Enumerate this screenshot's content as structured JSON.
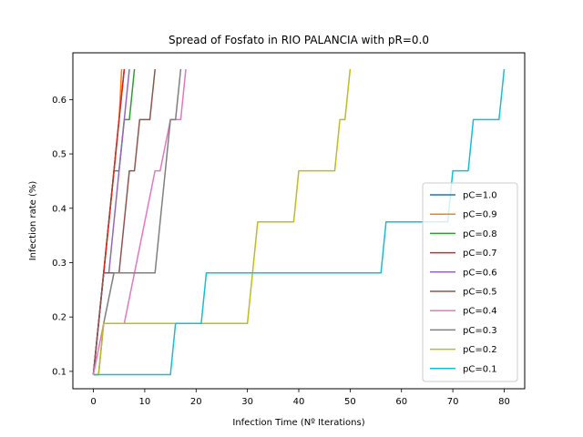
{
  "chart_data": {
    "type": "line",
    "title": "Spread of Fosfato in RIO PALANCIA with pR=0.0",
    "xlabel": "Infection Time (Nº Iterations)",
    "ylabel": "Infection rate (%)",
    "xlim": [
      -4,
      84
    ],
    "ylim": [
      0.068,
      0.686
    ],
    "xticks": [
      0,
      10,
      20,
      30,
      40,
      50,
      60,
      70,
      80
    ],
    "yticks": [
      0.1,
      0.2,
      0.3,
      0.4,
      0.5,
      0.6
    ],
    "ytick_labels": [
      "0.1",
      "0.2",
      "0.3",
      "0.4",
      "0.5",
      "0.6"
    ],
    "grid": false,
    "legend_position": "lower-right",
    "series": [
      {
        "name": "pC=1.0",
        "color": "#1f77b4",
        "x": [
          0,
          1,
          2,
          3,
          4,
          5,
          6
        ],
        "y": [
          0.094,
          0.188,
          0.281,
          0.375,
          0.469,
          0.563,
          0.656
        ]
      },
      {
        "name": "pC=0.9",
        "color": "#ff7f0e",
        "x": [
          0,
          1,
          2,
          3,
          4,
          5,
          5.5
        ],
        "y": [
          0.094,
          0.188,
          0.281,
          0.375,
          0.469,
          0.563,
          0.656
        ]
      },
      {
        "name": "pC=0.8",
        "color": "#2ca02c",
        "x": [
          0,
          1,
          2,
          3,
          4,
          5,
          6,
          7,
          8
        ],
        "y": [
          0.094,
          0.188,
          0.281,
          0.375,
          0.469,
          0.469,
          0.563,
          0.563,
          0.656
        ]
      },
      {
        "name": "pC=0.7",
        "color": "#d62728",
        "x": [
          0,
          1,
          2,
          3,
          4,
          5,
          6
        ],
        "y": [
          0.094,
          0.188,
          0.281,
          0.375,
          0.469,
          0.563,
          0.656
        ]
      },
      {
        "name": "pC=0.6",
        "color": "#9467bd",
        "x": [
          0,
          1,
          2,
          3,
          4,
          5,
          6,
          7
        ],
        "y": [
          0.094,
          0.188,
          0.281,
          0.281,
          0.375,
          0.469,
          0.563,
          0.656
        ]
      },
      {
        "name": "pC=0.5",
        "color": "#8c564b",
        "x": [
          0,
          2,
          5,
          7,
          8,
          9,
          10,
          11,
          12
        ],
        "y": [
          0.094,
          0.281,
          0.281,
          0.469,
          0.469,
          0.563,
          0.563,
          0.563,
          0.656
        ]
      },
      {
        "name": "pC=0.4",
        "color": "#e377c2",
        "x": [
          0,
          2,
          6,
          8,
          10,
          12,
          13,
          15,
          17,
          18
        ],
        "y": [
          0.094,
          0.188,
          0.188,
          0.281,
          0.375,
          0.469,
          0.469,
          0.563,
          0.563,
          0.656
        ]
      },
      {
        "name": "pC=0.3",
        "color": "#7f7f7f",
        "x": [
          0,
          1,
          2,
          4,
          12,
          13,
          14,
          15,
          16,
          17
        ],
        "y": [
          0.094,
          0.094,
          0.188,
          0.281,
          0.281,
          0.375,
          0.469,
          0.563,
          0.563,
          0.656
        ]
      },
      {
        "name": "pC=0.2",
        "color": "#bcbd22",
        "x": [
          0,
          1,
          2,
          30,
          32,
          39,
          40,
          47,
          48,
          49,
          50
        ],
        "y": [
          0.094,
          0.094,
          0.188,
          0.188,
          0.375,
          0.375,
          0.469,
          0.469,
          0.563,
          0.563,
          0.656
        ]
      },
      {
        "name": "pC=0.1",
        "color": "#17becf",
        "x": [
          0,
          15,
          16,
          21,
          22,
          56,
          57,
          69,
          70,
          73,
          74,
          79,
          80
        ],
        "y": [
          0.094,
          0.094,
          0.188,
          0.188,
          0.281,
          0.281,
          0.375,
          0.375,
          0.469,
          0.469,
          0.563,
          0.563,
          0.656
        ]
      }
    ]
  }
}
